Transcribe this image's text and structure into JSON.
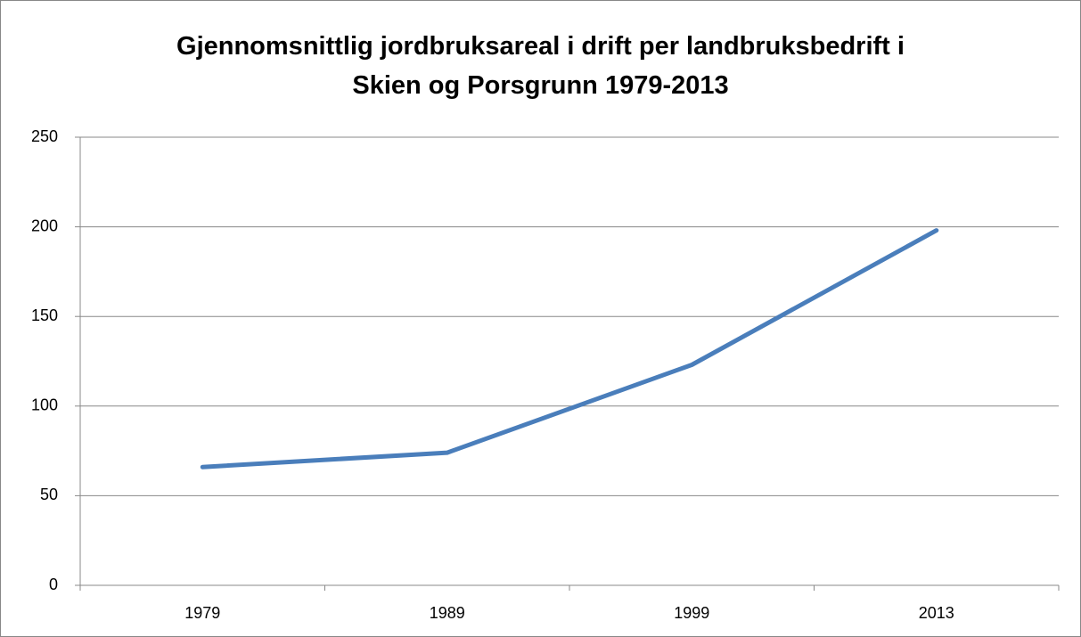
{
  "chart_data": {
    "type": "line",
    "title": "Gjennomsnittlig jordbruksareal i drift per landbruksbedrift i\nSkien og Porsgrunn 1979-2013",
    "categories": [
      "1979",
      "1989",
      "1999",
      "2013"
    ],
    "values": [
      66,
      74,
      123,
      198
    ],
    "color": "#4a7ebb",
    "ylim": [
      0,
      250
    ],
    "yticks": [
      0,
      50,
      100,
      150,
      200,
      250
    ],
    "grid": true
  }
}
